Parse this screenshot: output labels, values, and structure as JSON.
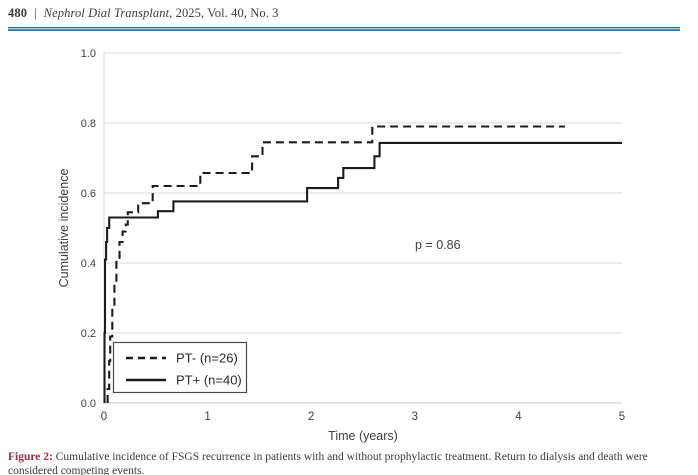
{
  "header": {
    "page_number": "480",
    "separator": "|",
    "journal_title": "Nephrol Dial Transplant",
    "citation_suffix": ", 2025, Vol. 40, No. 3"
  },
  "chart_data": {
    "type": "line",
    "subtype": "cumulative-incidence-step",
    "title": "",
    "xlabel": "Time (years)",
    "ylabel": "Cumulative incidence",
    "xlim": [
      0,
      5
    ],
    "ylim": [
      0.0,
      1.0
    ],
    "x_ticks": [
      "0",
      "1",
      "2",
      "3",
      "4",
      "5"
    ],
    "y_ticks": [
      "0.0",
      "0.2",
      "0.4",
      "0.6",
      "0.8",
      "1.0"
    ],
    "grid": true,
    "legend_position": "lower-left",
    "annotation": "p = 0.86",
    "series": [
      {
        "name": "PT- (n=26)",
        "style": "dashed",
        "t_end": 4.45,
        "steps": [
          [
            0.035,
            0.04
          ],
          [
            0.05,
            0.12
          ],
          [
            0.06,
            0.19
          ],
          [
            0.08,
            0.27
          ],
          [
            0.1,
            0.34
          ],
          [
            0.12,
            0.41
          ],
          [
            0.15,
            0.46
          ],
          [
            0.18,
            0.49
          ],
          [
            0.21,
            0.51
          ],
          [
            0.23,
            0.545
          ],
          [
            0.33,
            0.571
          ],
          [
            0.47,
            0.62
          ],
          [
            0.93,
            0.657
          ],
          [
            1.43,
            0.705
          ],
          [
            1.53,
            0.745
          ],
          [
            2.59,
            0.79
          ]
        ]
      },
      {
        "name": "PT+ (n=40)",
        "style": "solid",
        "t_end": 5.0,
        "steps": [
          [
            0.005,
            0.2
          ],
          [
            0.01,
            0.41
          ],
          [
            0.02,
            0.46
          ],
          [
            0.03,
            0.5
          ],
          [
            0.05,
            0.53
          ],
          [
            0.52,
            0.548
          ],
          [
            0.67,
            0.576
          ],
          [
            1.96,
            0.614
          ],
          [
            2.26,
            0.643
          ],
          [
            2.31,
            0.671
          ],
          [
            2.61,
            0.705
          ],
          [
            2.66,
            0.743
          ]
        ]
      }
    ]
  },
  "caption": {
    "label": "Figure 2:",
    "text": " Cumulative incidence of FSGS recurrence in patients with and without prophylactic treatment. Return to dialysis and death were considered competing events."
  },
  "colors": {
    "rule_dark": "#2e6e8e",
    "rule_light": "#a9cbd9",
    "figure_label_red": "#9c2e3e",
    "text": "#3d3d3d",
    "axis_text": "#404040",
    "grid": "#d9d9d9",
    "curve": "#1c1c1c",
    "legend_border": "#4a4a4a"
  }
}
